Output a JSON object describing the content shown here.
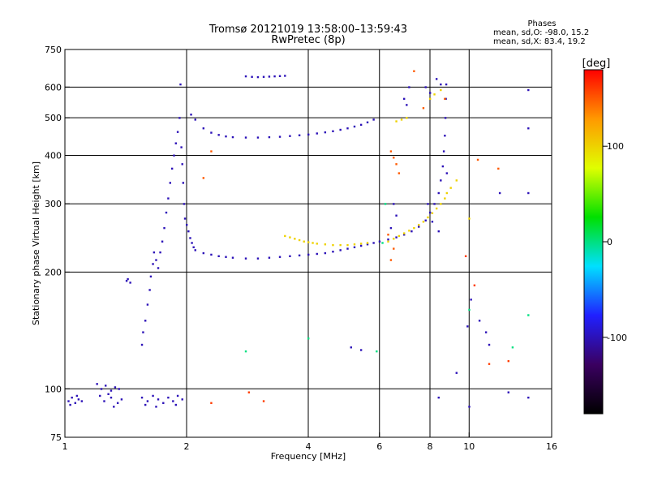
{
  "chart_data": {
    "type": "scatter",
    "title": "Tromsø 20121019 13:58:00–13:59:43",
    "subtitle": "RwPretec (8p)",
    "xlabel": "Frequency [MHz]",
    "ylabel": "Stationary phase Virtual Height [km]",
    "x_scale": "log",
    "y_scale": "log",
    "xlim": [
      1,
      16
    ],
    "ylim": [
      75,
      750
    ],
    "x_ticks": [
      1,
      2,
      4,
      6,
      8,
      10,
      16
    ],
    "y_ticks": [
      75,
      100,
      200,
      300,
      400,
      500,
      600,
      750
    ],
    "grid_x": [
      2,
      4,
      6,
      8,
      10
    ],
    "grid_y": [
      100,
      200,
      300,
      400,
      500,
      600
    ],
    "stats": {
      "heading": "Phases",
      "line_o": "mean, sd,O: -98.0, 15.2",
      "line_x": "mean, sd,X: 83.4, 19.2"
    },
    "colorbar": {
      "label": "[deg]",
      "range": [
        -180,
        180
      ],
      "ticks": [
        100,
        0,
        -100
      ],
      "stops": [
        "#000000",
        "#3a0060",
        "#2020ff",
        "#00e0ff",
        "#00e000",
        "#e0ff00",
        "#ff9900",
        "#ff0000"
      ]
    },
    "series": [
      {
        "phase": -100,
        "points": [
          [
            1.02,
            93
          ],
          [
            1.04,
            95
          ],
          [
            1.06,
            92
          ],
          [
            1.08,
            94
          ],
          [
            1.1,
            93
          ],
          [
            1.03,
            91
          ],
          [
            1.07,
            96
          ],
          [
            1.2,
            103
          ],
          [
            1.23,
            100
          ],
          [
            1.26,
            102
          ],
          [
            1.3,
            99
          ],
          [
            1.33,
            101
          ],
          [
            1.36,
            100
          ],
          [
            1.22,
            96
          ],
          [
            1.28,
            97
          ],
          [
            1.25,
            93
          ],
          [
            1.3,
            95
          ],
          [
            1.35,
            92
          ],
          [
            1.38,
            94
          ],
          [
            1.32,
            90
          ],
          [
            1.55,
            95
          ],
          [
            1.6,
            93
          ],
          [
            1.65,
            96
          ],
          [
            1.7,
            94
          ],
          [
            1.75,
            92
          ],
          [
            1.58,
            91
          ],
          [
            1.68,
            90
          ],
          [
            1.8,
            95
          ],
          [
            1.85,
            93
          ],
          [
            1.9,
            96
          ],
          [
            1.95,
            94
          ],
          [
            1.88,
            91
          ],
          [
            1.42,
            190
          ],
          [
            1.43,
            192
          ],
          [
            1.45,
            188
          ],
          [
            1.55,
            130
          ],
          [
            1.56,
            140
          ],
          [
            1.58,
            150
          ],
          [
            1.6,
            165
          ],
          [
            1.62,
            180
          ],
          [
            1.63,
            195
          ],
          [
            1.65,
            210
          ],
          [
            1.66,
            225
          ],
          [
            1.68,
            215
          ],
          [
            1.7,
            205
          ],
          [
            1.72,
            225
          ],
          [
            1.74,
            240
          ],
          [
            1.76,
            260
          ],
          [
            1.78,
            285
          ],
          [
            1.8,
            310
          ],
          [
            1.82,
            340
          ],
          [
            1.84,
            370
          ],
          [
            1.86,
            400
          ],
          [
            1.88,
            430
          ],
          [
            1.9,
            460
          ],
          [
            1.92,
            500
          ],
          [
            1.93,
            610
          ],
          [
            1.94,
            420
          ],
          [
            1.95,
            380
          ],
          [
            1.96,
            340
          ],
          [
            1.97,
            300
          ],
          [
            1.98,
            275
          ],
          [
            2.0,
            265
          ],
          [
            2.02,
            255
          ],
          [
            2.04,
            245
          ],
          [
            2.06,
            238
          ],
          [
            2.08,
            232
          ],
          [
            2.1,
            228
          ],
          [
            2.2,
            224
          ],
          [
            2.3,
            222
          ],
          [
            2.4,
            220
          ],
          [
            2.5,
            219
          ],
          [
            2.6,
            218
          ],
          [
            2.8,
            217
          ],
          [
            3.0,
            217
          ],
          [
            3.2,
            218
          ],
          [
            3.4,
            219
          ],
          [
            3.6,
            220
          ],
          [
            3.8,
            221
          ],
          [
            4.0,
            222
          ],
          [
            4.2,
            223
          ],
          [
            4.4,
            224
          ],
          [
            4.6,
            226
          ],
          [
            4.8,
            228
          ],
          [
            5.0,
            230
          ],
          [
            5.2,
            232
          ],
          [
            5.4,
            234
          ],
          [
            5.6,
            236
          ],
          [
            5.8,
            238
          ],
          [
            6.0,
            240
          ],
          [
            6.3,
            243
          ],
          [
            6.6,
            246
          ],
          [
            6.9,
            250
          ],
          [
            7.2,
            255
          ],
          [
            7.5,
            262
          ],
          [
            7.8,
            272
          ],
          [
            8.0,
            285
          ],
          [
            8.2,
            300
          ],
          [
            8.4,
            320
          ],
          [
            8.5,
            345
          ],
          [
            8.6,
            375
          ],
          [
            8.65,
            410
          ],
          [
            8.7,
            450
          ],
          [
            8.73,
            500
          ],
          [
            8.75,
            560
          ],
          [
            8.77,
            610
          ],
          [
            2.05,
            510
          ],
          [
            2.1,
            495
          ],
          [
            2.2,
            470
          ],
          [
            2.3,
            458
          ],
          [
            2.4,
            452
          ],
          [
            2.5,
            448
          ],
          [
            2.6,
            446
          ],
          [
            2.8,
            445
          ],
          [
            3.0,
            445
          ],
          [
            3.2,
            446
          ],
          [
            3.4,
            447
          ],
          [
            3.6,
            449
          ],
          [
            3.8,
            451
          ],
          [
            4.0,
            453
          ],
          [
            4.2,
            456
          ],
          [
            4.4,
            459
          ],
          [
            4.6,
            462
          ],
          [
            4.8,
            466
          ],
          [
            5.0,
            470
          ],
          [
            5.2,
            475
          ],
          [
            5.4,
            480
          ],
          [
            5.6,
            487
          ],
          [
            5.8,
            495
          ],
          [
            2.8,
            640
          ],
          [
            2.9,
            638
          ],
          [
            3.0,
            637
          ],
          [
            3.1,
            638
          ],
          [
            3.2,
            639
          ],
          [
            3.3,
            640
          ],
          [
            3.4,
            641
          ],
          [
            3.5,
            642
          ],
          [
            6.9,
            560
          ],
          [
            7.0,
            540
          ],
          [
            7.1,
            600
          ],
          [
            7.8,
            600
          ],
          [
            8.0,
            580
          ],
          [
            8.3,
            630
          ],
          [
            8.5,
            610
          ],
          [
            6.5,
            300
          ],
          [
            6.6,
            280
          ],
          [
            6.4,
            260
          ],
          [
            7.9,
            300
          ],
          [
            8.1,
            270
          ],
          [
            8.4,
            255
          ],
          [
            8.8,
            360
          ],
          [
            9.9,
            145
          ],
          [
            10.1,
            170
          ],
          [
            10.6,
            150
          ],
          [
            11.0,
            140
          ],
          [
            11.2,
            130
          ],
          [
            11.9,
            320
          ],
          [
            14.0,
            590
          ],
          [
            14.0,
            470
          ],
          [
            14.0,
            320
          ],
          [
            14.0,
            95
          ],
          [
            8.4,
            95
          ],
          [
            9.3,
            110
          ],
          [
            10.0,
            90
          ],
          [
            12.5,
            98
          ],
          [
            5.1,
            128
          ],
          [
            5.4,
            126
          ]
        ]
      },
      {
        "phase": 100,
        "points": [
          [
            3.5,
            248
          ],
          [
            3.6,
            246
          ],
          [
            3.7,
            244
          ],
          [
            3.8,
            242
          ],
          [
            3.9,
            240
          ],
          [
            4.0,
            239
          ],
          [
            4.1,
            238
          ],
          [
            4.2,
            237
          ],
          [
            4.4,
            236
          ],
          [
            4.6,
            235
          ],
          [
            4.8,
            235
          ],
          [
            5.0,
            235
          ],
          [
            5.2,
            236
          ],
          [
            5.4,
            237
          ],
          [
            5.6,
            238
          ],
          [
            6.3,
            240
          ],
          [
            6.5,
            244
          ],
          [
            6.7,
            248
          ],
          [
            6.9,
            252
          ],
          [
            7.1,
            256
          ],
          [
            7.3,
            260
          ],
          [
            7.5,
            265
          ],
          [
            7.7,
            270
          ],
          [
            7.9,
            277
          ],
          [
            8.1,
            284
          ],
          [
            8.3,
            292
          ],
          [
            8.5,
            300
          ],
          [
            8.7,
            310
          ],
          [
            8.8,
            320
          ],
          [
            9.0,
            330
          ],
          [
            6.6,
            490
          ],
          [
            6.8,
            495
          ],
          [
            7.0,
            500
          ],
          [
            8.0,
            560
          ],
          [
            8.2,
            575
          ],
          [
            8.5,
            590
          ],
          [
            9.3,
            345
          ],
          [
            10.0,
            275
          ]
        ]
      },
      {
        "phase": 150,
        "points": [
          [
            6.7,
            360
          ],
          [
            6.6,
            380
          ],
          [
            6.5,
            395
          ],
          [
            6.4,
            410
          ],
          [
            6.3,
            250
          ],
          [
            6.5,
            230
          ],
          [
            6.4,
            215
          ],
          [
            7.3,
            660
          ],
          [
            7.7,
            530
          ],
          [
            8.7,
            560
          ],
          [
            11.8,
            370
          ],
          [
            10.5,
            390
          ],
          [
            2.2,
            350
          ],
          [
            2.3,
            410
          ]
        ]
      },
      {
        "phase": 0,
        "points": [
          [
            2.8,
            125
          ],
          [
            4.0,
            135
          ],
          [
            5.9,
            125
          ],
          [
            6.1,
            238
          ],
          [
            6.2,
            300
          ],
          [
            14.0,
            155
          ],
          [
            12.8,
            128
          ],
          [
            10.0,
            160
          ]
        ]
      },
      {
        "phase": 160,
        "points": [
          [
            2.3,
            92
          ],
          [
            2.85,
            98
          ],
          [
            3.1,
            93
          ],
          [
            12.5,
            118
          ],
          [
            11.2,
            116
          ],
          [
            10.3,
            185
          ],
          [
            9.8,
            220
          ]
        ]
      }
    ]
  }
}
